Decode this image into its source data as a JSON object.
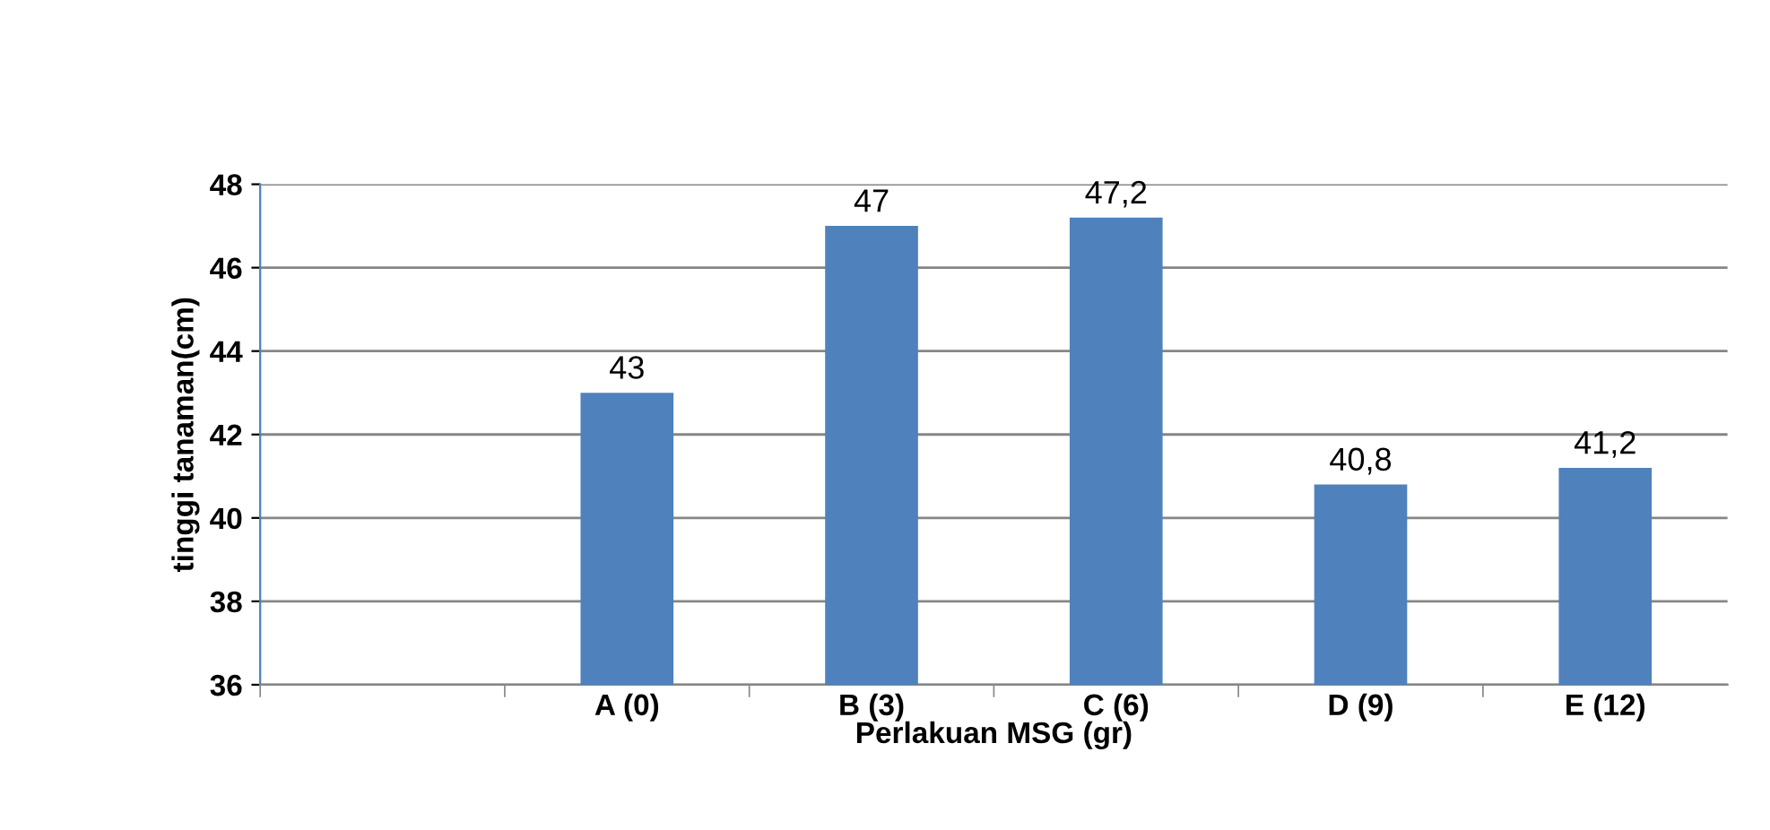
{
  "chart_data": {
    "type": "bar",
    "xlabel": "Perlakuan MSG (gr)",
    "ylabel": "tinggi tanaman(cm)",
    "categories": [
      null,
      "A (0)",
      "B (3)",
      "C (6)",
      "D (9)",
      "E (12)"
    ],
    "values": [
      null,
      43,
      47,
      47.2,
      40.8,
      41.2
    ],
    "value_labels": [
      null,
      "43",
      "47",
      "47,2",
      "40,8",
      "41,2"
    ],
    "color": "#4f81bd",
    "ylim": [
      36,
      48
    ],
    "yticks": [
      36,
      38,
      40,
      42,
      44,
      46,
      48
    ],
    "grid": "y",
    "legend": false
  }
}
